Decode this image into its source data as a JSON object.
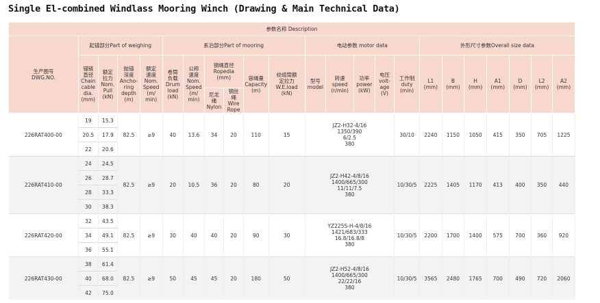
{
  "title": "Single El-combined Windlass Mooring Winch (Drawing & Main Technical Data)",
  "table": {
    "description": "参数名称 Description",
    "dwg_header": [
      "生产图号",
      "DWG.NO."
    ],
    "groups": [
      "起锚部分Part of weighing",
      "系泊部分Part of mooring",
      "电动参数 motor data",
      "外形尺寸参数Overall size data"
    ],
    "columns": [
      [
        "锚链",
        "直径",
        "Chain",
        "cable",
        "dia.",
        "(mm)"
      ],
      [
        "额定",
        "拉力",
        "Nom.",
        "Pull",
        "(kN)"
      ],
      [
        "抛锚",
        "深度",
        "Ancho-",
        "ring",
        "depth",
        "(m)"
      ],
      [
        "额定",
        "速度",
        "Nom.",
        "Speed",
        "(m/",
        "min)"
      ],
      [
        "卷筒",
        "负载",
        "Drum",
        "load",
        "(kN)"
      ],
      [
        "公称",
        "速度",
        "Nom.",
        "Speed",
        "(m/",
        "min)"
      ],
      [
        "钢绳直径",
        "Ropedia",
        "(mm)"
      ],
      [
        "尼龙",
        "绳",
        "Nylon"
      ],
      [
        "钢丝",
        "绳",
        "Wire",
        "Rope"
      ],
      [
        "容绳量",
        "Capacity",
        "(m)"
      ],
      [
        "绞缆筒额",
        "定拉力",
        "W.E.load",
        "(kN)"
      ],
      [
        "型号",
        "model"
      ],
      [
        "转速",
        "speed",
        "(r/min)"
      ],
      [
        "功率",
        "power",
        "(kW)"
      ],
      [
        "电压",
        "volt-",
        "age",
        "(V)"
      ],
      [
        "工作制",
        "duty",
        "(min)"
      ],
      [
        "L1",
        "(mm)"
      ],
      [
        "B",
        "(mm)"
      ],
      [
        "H",
        "(mm)"
      ],
      [
        "A1",
        "(mm)"
      ],
      [
        "D",
        "(mm)"
      ],
      [
        "L2",
        "(mm)"
      ],
      [
        "A2",
        "(mm)"
      ]
    ],
    "rows": [
      {
        "dwg": "226RAT400-00",
        "chain": [
          "19",
          "20.5",
          "22"
        ],
        "pull": [
          "15.3",
          "17.9",
          "20.6"
        ],
        "depth": "82.5",
        "speed": "≥9",
        "drum": "40",
        "nom_speed": "13.6",
        "nylon": "34",
        "wire": "20",
        "capacity": "110",
        "we_load": "15",
        "motor": [
          "JZ2-H32-4/16",
          "1350/390",
          "6/2.5",
          "380"
        ],
        "duty": "30/10",
        "dims": [
          "2240",
          "1150",
          "1050",
          "415",
          "350",
          "705",
          "1225"
        ]
      },
      {
        "dwg": "226RAT410-00",
        "chain": [
          "24",
          "26",
          "28",
          "30"
        ],
        "pull": [
          "24.5",
          "28.7",
          "33.3",
          "38.3"
        ],
        "depth": "82.5",
        "speed": "≥9",
        "drum": "20",
        "nom_speed": "10.5",
        "nylon": "36",
        "wire": "20",
        "capacity": "80",
        "we_load": "20",
        "motor": [
          "JZ2-H42-4/8/16",
          "1400/665/300",
          "11/11/7.5",
          "380"
        ],
        "duty": "10/30/5",
        "dims": [
          "2225",
          "1405",
          "1170",
          "413",
          "400",
          "350",
          "440"
        ]
      },
      {
        "dwg": "226RAT420-00",
        "chain": [
          "32",
          "34",
          "36"
        ],
        "pull": [
          "43.5",
          "49.1",
          "55.1"
        ],
        "depth": "82.5",
        "speed": "≥9",
        "drum": "30",
        "nom_speed": "40",
        "nylon": "40",
        "wire": "20",
        "capacity": "90",
        "we_load": "30",
        "motor": [
          "YZ225S-H-4/8/16",
          "1421/683/333",
          "16.8/16.8/8",
          "380"
        ],
        "duty": "10/30/5",
        "dims": [
          "2200",
          "1700",
          "1400",
          "575",
          "700",
          "360",
          "920"
        ]
      },
      {
        "dwg": "226RAT430-00",
        "chain": [
          "38",
          "40",
          "42"
        ],
        "pull": [
          "61.4",
          "68.0",
          "75.0"
        ],
        "depth": "82.5",
        "speed": "≥9",
        "drum": "50",
        "nom_speed": "45",
        "nylon": "45",
        "wire": "20",
        "capacity": "180",
        "we_load": "50",
        "motor": [
          "JZ2-H52-4/8/16",
          "1400/665/300",
          "22/22/16",
          "380"
        ],
        "duty": "10/30/5",
        "dims": [
          "3565",
          "2480",
          "1765",
          "700",
          "490",
          "720",
          "2060"
        ]
      }
    ]
  }
}
